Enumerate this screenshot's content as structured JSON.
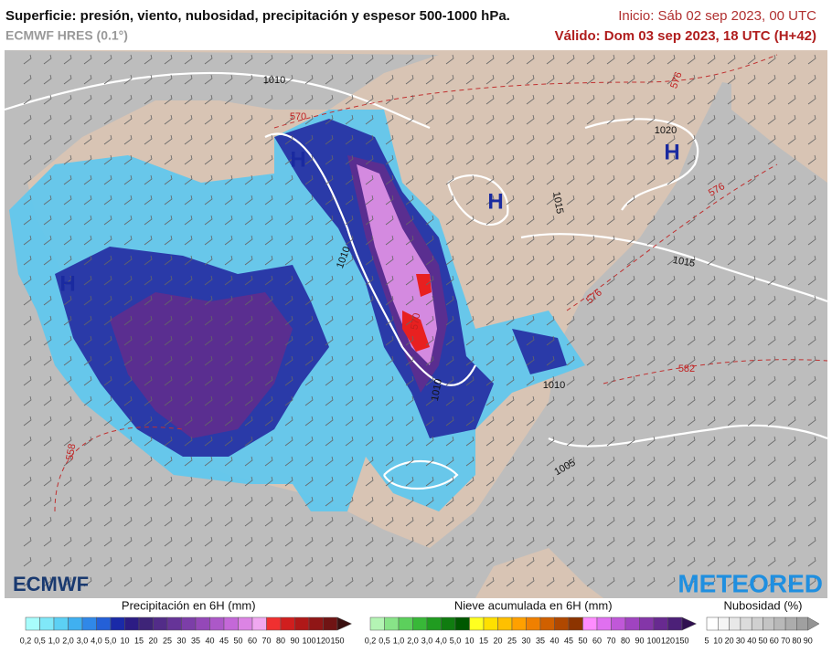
{
  "header": {
    "title": "Superficie: presión, viento, nubosidad, precipitación y espesor 500-1000 hPa.",
    "model": "ECMWF HRES (0.1°)",
    "init": "Inicio: Sáb 02 sep 2023, 00 UTC",
    "valid": "Válido: Dom 03 sep 2023, 18 UTC (H+42)"
  },
  "map": {
    "isobar_labels": [
      "1010",
      "1020",
      "1015",
      "1010",
      "1015",
      "1010",
      "1010",
      "1005"
    ],
    "thickness_labels": [
      "570",
      "576",
      "576",
      "576",
      "570",
      "582",
      "558"
    ],
    "high_labels": [
      "H",
      "H",
      "H",
      "H"
    ]
  },
  "logos": {
    "left": "ECMWF",
    "right": "METEORED"
  },
  "legends": [
    {
      "title": "Precipitación en 6H (mm)",
      "labels": [
        "0,2",
        "0,5",
        "1,0",
        "2,0",
        "3,0",
        "4,0",
        "5,0",
        "10",
        "15",
        "20",
        "25",
        "30",
        "35",
        "40",
        "45",
        "50",
        "60",
        "70",
        "80",
        "90",
        "100",
        "120",
        "150"
      ],
      "colors": [
        "#a8fcfc",
        "#80e8f8",
        "#5cd0f4",
        "#40b0f0",
        "#3088e8",
        "#2460d8",
        "#1a2aa8",
        "#2c1c84",
        "#3e2478",
        "#522c88",
        "#663498",
        "#7c3ea8",
        "#9448b8",
        "#ac58c8",
        "#c468d8",
        "#dc84e4",
        "#f0a8f0",
        "#f03030",
        "#d01e1e",
        "#b01818",
        "#901616",
        "#701414"
      ],
      "arrow": "#3a1010"
    },
    {
      "title": "Nieve acumulada en 6H (mm)",
      "labels": [
        "0,2",
        "0,5",
        "1,0",
        "2,0",
        "3,0",
        "4,0",
        "5,0",
        "10",
        "15",
        "20",
        "25",
        "30",
        "35",
        "40",
        "45",
        "50",
        "60",
        "70",
        "80",
        "90",
        "100",
        "120",
        "150"
      ],
      "colors": [
        "#b4f4b4",
        "#88e488",
        "#5cd05c",
        "#38b838",
        "#209c20",
        "#107c10",
        "#005800",
        "#ffff20",
        "#ffe000",
        "#ffc000",
        "#ffa000",
        "#f08000",
        "#d06000",
        "#b04800",
        "#8c3400",
        "#ff8cff",
        "#e070f0",
        "#c058d8",
        "#a044c0",
        "#8436a8",
        "#682a90",
        "#4c2078"
      ],
      "arrow": "#301050"
    },
    {
      "title": "Nubosidad (%)",
      "labels": [
        "5",
        "10",
        "20",
        "30",
        "40",
        "50",
        "60",
        "70",
        "80",
        "90"
      ],
      "colors": [
        "#ffffff",
        "#f4f4f4",
        "#e8e8e8",
        "#dcdcdc",
        "#d0d0d0",
        "#c4c4c4",
        "#b8b8b8",
        "#acacac",
        "#a0a0a0"
      ],
      "arrow": "#949494"
    }
  ]
}
